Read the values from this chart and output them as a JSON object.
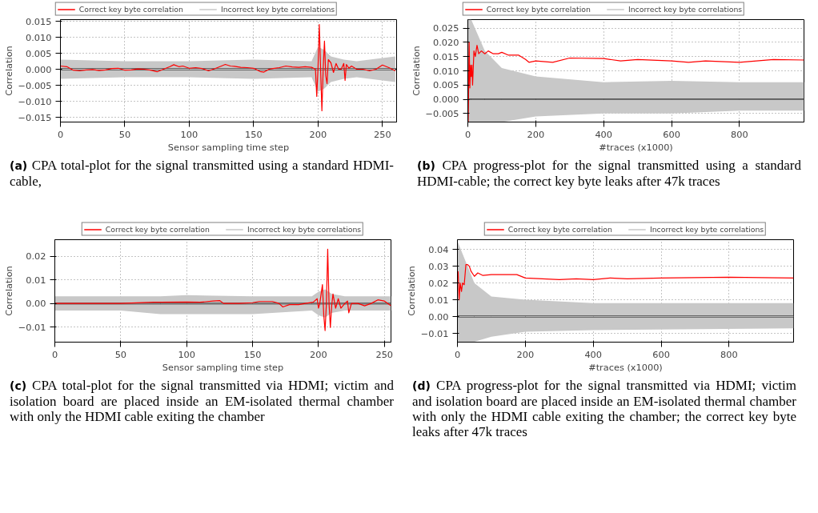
{
  "chart_data": [
    {
      "type": "line",
      "xlabel": "Sensor sampling time step",
      "ylabel": "Correlation",
      "xlim": [
        0,
        261
      ],
      "ylim": [
        -0.0165,
        0.0155
      ],
      "xticks": [
        0,
        50,
        100,
        150,
        200,
        250
      ],
      "yticks": [
        {
          "value": -0.015,
          "label": "−0.015"
        },
        {
          "value": -0.01,
          "label": "−0.010"
        },
        {
          "value": -0.005,
          "label": "−0.005"
        },
        {
          "value": 0,
          "label": "0.000"
        },
        {
          "value": 0.005,
          "label": "0.005"
        },
        {
          "value": 0.01,
          "label": "0.010"
        },
        {
          "value": 0.015,
          "label": "0.015"
        }
      ],
      "grid": true,
      "legend": "top",
      "ref_lines": [
        {
          "axis": "y",
          "value": 0,
          "color": "#000000"
        }
      ],
      "series": [
        {
          "name": "Correct key byte correlation",
          "color": "#ff0000",
          "x": [
            0,
            5,
            10,
            15,
            20,
            25,
            30,
            35,
            40,
            45,
            50,
            55,
            60,
            65,
            70,
            75,
            80,
            85,
            88,
            92,
            95,
            100,
            105,
            110,
            115,
            120,
            125,
            128,
            132,
            135,
            140,
            145,
            150,
            155,
            158,
            162,
            165,
            170,
            175,
            180,
            185,
            190,
            195,
            198,
            199,
            200,
            201,
            202,
            203,
            204,
            205,
            206,
            207,
            208,
            210,
            212,
            214,
            216,
            218,
            220,
            221,
            222,
            224,
            226,
            230,
            235,
            240,
            245,
            250,
            255,
            260
          ],
          "values": [
            0.001,
            0.0008,
            -0.0003,
            -0.0005,
            -0.0002,
            -0.0001,
            -0.0004,
            -0.0002,
            0.0002,
            0.0003,
            -0.0003,
            -0.0002,
            0.0001,
            0.0,
            -0.0003,
            -0.0008,
            0.0,
            0.0008,
            0.0014,
            0.0008,
            0.001,
            0.0003,
            0.0005,
            0.0002,
            -0.0005,
            0.0002,
            0.001,
            0.0015,
            0.001,
            0.0009,
            0.0006,
            0.0005,
            0.0003,
            -0.0007,
            -0.0009,
            0.0,
            0.0002,
            0.0005,
            0.001,
            0.0007,
            0.0006,
            0.0008,
            0.0006,
            0.0,
            -0.0085,
            0.0005,
            0.014,
            0.0,
            -0.013,
            0.0,
            0.0088,
            -0.002,
            -0.0045,
            0.003,
            0.002,
            -0.001,
            0.0018,
            0.0,
            0.0,
            0.0018,
            -0.0035,
            0.0015,
            0.0003,
            0.001,
            0.0,
            0.0,
            -0.0005,
            0.0,
            0.0013,
            0.0005,
            -0.0005
          ]
        },
        {
          "name": "Incorrect key byte correlations",
          "color": "#c8c8c8",
          "x": [
            0,
            50,
            100,
            150,
            195,
            200,
            205,
            210,
            220,
            230,
            260
          ],
          "values": [
            null,
            null,
            null,
            null,
            null,
            null,
            null,
            null,
            null,
            null,
            null
          ],
          "lower": [
            -0.003,
            -0.0025,
            -0.0025,
            -0.003,
            -0.0025,
            -0.007,
            -0.006,
            -0.004,
            -0.003,
            -0.0025,
            -0.004
          ],
          "upper": [
            0.003,
            0.0025,
            0.0025,
            0.003,
            0.0025,
            0.007,
            0.006,
            0.004,
            0.003,
            0.0025,
            0.004
          ]
        }
      ],
      "annotations": [
        "(a) CPA total-plot for the signal transmitted using a standard HDMI-cable,"
      ]
    },
    {
      "type": "line",
      "xlabel": "#traces (x1000)",
      "ylabel": "Correlation",
      "xlim": [
        0,
        990
      ],
      "ylim": [
        -0.008,
        0.028
      ],
      "xticks": [
        0,
        200,
        400,
        600,
        800
      ],
      "yticks": [
        {
          "value": -0.005,
          "label": "−0.005"
        },
        {
          "value": 0,
          "label": "0.000"
        },
        {
          "value": 0.005,
          "label": "0.005"
        },
        {
          "value": 0.01,
          "label": "0.010"
        },
        {
          "value": 0.015,
          "label": "0.015"
        },
        {
          "value": 0.02,
          "label": "0.020"
        },
        {
          "value": 0.025,
          "label": "0.025"
        }
      ],
      "grid": true,
      "legend": "top",
      "ref_lines": [
        {
          "axis": "y",
          "value": 0,
          "color": "#000000"
        }
      ],
      "series": [
        {
          "name": "Correct key byte correlation",
          "color": "#ff0000",
          "x": [
            1,
            2,
            4,
            6,
            8,
            10,
            12,
            14,
            18,
            22,
            27,
            32,
            40,
            50,
            60,
            75,
            90,
            100,
            120,
            150,
            170,
            180,
            200,
            250,
            300,
            400,
            450,
            500,
            600,
            650,
            700,
            800,
            900,
            990
          ],
          "values": [
            -0.008,
            0.0,
            0.02,
            0.004,
            0.012,
            0.008,
            0.012,
            0.005,
            0.017,
            0.015,
            0.019,
            0.016,
            0.017,
            0.016,
            0.017,
            0.016,
            0.016,
            0.0165,
            0.0155,
            0.0155,
            0.014,
            0.013,
            0.0135,
            0.013,
            0.0145,
            0.0143,
            0.0135,
            0.014,
            0.0135,
            0.013,
            0.0135,
            0.013,
            0.014,
            0.0138
          ]
        },
        {
          "name": "Incorrect key byte correlations",
          "color": "#c8c8c8",
          "x": [
            0,
            10,
            50,
            100,
            200,
            400,
            600,
            800,
            990
          ],
          "values": [
            null,
            null,
            null,
            null,
            null,
            null,
            null,
            null,
            null
          ],
          "lower": [
            -0.008,
            -0.008,
            -0.008,
            -0.008,
            -0.006,
            -0.005,
            -0.005,
            -0.004,
            -0.004
          ],
          "upper": [
            0.028,
            0.028,
            0.017,
            0.011,
            0.008,
            0.006,
            0.0065,
            0.006,
            0.006
          ]
        }
      ],
      "annotations": [
        "(b) CPA progress-plot for the signal transmitted using a standard HDMI-cable; the correct key byte leaks after 47k traces"
      ]
    },
    {
      "type": "line",
      "xlabel": "Sensor sampling time step",
      "ylabel": "Correlation",
      "xlim": [
        0,
        255
      ],
      "ylim": [
        -0.0164,
        0.027
      ],
      "xticks": [
        0,
        50,
        100,
        150,
        200,
        250
      ],
      "yticks": [
        {
          "value": -0.01,
          "label": "−0.01"
        },
        {
          "value": 0,
          "label": "0.00"
        },
        {
          "value": 0.01,
          "label": "0.01"
        },
        {
          "value": 0.02,
          "label": "0.02"
        }
      ],
      "grid": true,
      "legend": "top",
      "ref_lines": [
        {
          "axis": "y",
          "value": 0,
          "color": "#000000"
        }
      ],
      "series": [
        {
          "name": "Correct key byte correlation",
          "color": "#ff0000",
          "x": [
            0,
            50,
            75,
            80,
            100,
            110,
            120,
            125,
            128,
            140,
            150,
            155,
            160,
            165,
            170,
            173,
            178,
            185,
            190,
            196,
            199,
            200,
            201,
            203,
            204,
            205,
            206,
            207,
            208,
            209,
            210,
            211,
            213,
            215,
            217,
            220,
            222,
            223,
            225,
            230,
            235,
            240,
            245,
            250,
            255
          ],
          "values": [
            0.0,
            0.0,
            0.0005,
            0.0005,
            0.0006,
            0.0005,
            0.001,
            0.0012,
            0.0,
            0.0,
            0.0003,
            0.0008,
            0.0008,
            0.0008,
            0.0,
            -0.0015,
            -0.0005,
            -0.0005,
            0.0,
            0.0005,
            0.002,
            -0.002,
            0.0,
            0.008,
            -0.005,
            -0.0115,
            0.0,
            0.023,
            0.0,
            -0.0102,
            -0.001,
            0.004,
            -0.002,
            0.002,
            -0.002,
            0.0,
            0.001,
            -0.004,
            0.0,
            0.0,
            -0.001,
            0.0,
            0.0015,
            0.001,
            -0.001
          ]
        },
        {
          "name": "Incorrect key byte correlations",
          "color": "#c8c8c8",
          "x": [
            0,
            50,
            80,
            100,
            150,
            195,
            200,
            205,
            210,
            220,
            230,
            255
          ],
          "values": [
            null,
            null,
            null,
            null,
            null,
            null,
            null,
            null,
            null,
            null,
            null,
            null
          ],
          "lower": [
            -0.003,
            -0.003,
            -0.0045,
            -0.0045,
            -0.0045,
            -0.003,
            -0.005,
            -0.006,
            -0.004,
            -0.003,
            -0.003,
            -0.003
          ],
          "upper": [
            0.003,
            0.003,
            0.003,
            0.0035,
            0.003,
            0.003,
            0.005,
            0.006,
            0.004,
            0.003,
            0.003,
            0.003
          ]
        }
      ],
      "annotations": [
        "(c) CPA total-plot for the signal transmitted via HDMI; victim and isolation board are placed inside an EM-isolated thermal chamber with only the HDMI cable exiting the chamber"
      ]
    },
    {
      "type": "line",
      "xlabel": "#traces (x1000)",
      "ylabel": "Correlation",
      "xlim": [
        0,
        990
      ],
      "ylim": [
        -0.0152,
        0.0458
      ],
      "xticks": [
        0,
        200,
        400,
        600,
        800
      ],
      "yticks": [
        {
          "value": -0.01,
          "label": "−0.01"
        },
        {
          "value": 0,
          "label": "0.00"
        },
        {
          "value": 0.01,
          "label": "0.01"
        },
        {
          "value": 0.02,
          "label": "0.02"
        },
        {
          "value": 0.03,
          "label": "0.03"
        },
        {
          "value": 0.04,
          "label": "0.04"
        }
      ],
      "grid": true,
      "legend": "top",
      "ref_lines": [
        {
          "axis": "y",
          "value": 0,
          "color": "#000000"
        }
      ],
      "series": [
        {
          "name": "Correct key byte correlation",
          "color": "#ff0000",
          "x": [
            2,
            5,
            8,
            12,
            15,
            20,
            25,
            30,
            35,
            40,
            50,
            60,
            75,
            100,
            150,
            175,
            200,
            250,
            300,
            350,
            400,
            450,
            500,
            600,
            800,
            990
          ],
          "values": [
            0.027,
            0.01,
            0.02,
            0.015,
            0.02,
            0.019,
            0.031,
            0.031,
            0.03,
            0.027,
            0.024,
            0.026,
            0.0245,
            0.025,
            0.025,
            0.025,
            0.023,
            0.0225,
            0.022,
            0.0225,
            0.022,
            0.023,
            0.0225,
            0.023,
            0.0235,
            0.023
          ]
        },
        {
          "name": "Incorrect key byte correlations",
          "color": "#c8c8c8",
          "x": [
            0,
            50,
            100,
            200,
            400,
            990
          ],
          "values": [
            null,
            null,
            null,
            null,
            null,
            null
          ],
          "lower": [
            -0.015,
            -0.015,
            -0.012,
            -0.009,
            -0.008,
            -0.007
          ],
          "upper": [
            0.045,
            0.02,
            0.012,
            0.01,
            0.008,
            0.008
          ]
        }
      ],
      "annotations": [
        "(d) CPA progress-plot for the signal transmitted via HDMI; victim and isolation board are placed inside an EM-isolated thermal chamber with only the HDMI cable exiting the chamber; the correct key byte leaks after 47k traces"
      ]
    }
  ]
}
